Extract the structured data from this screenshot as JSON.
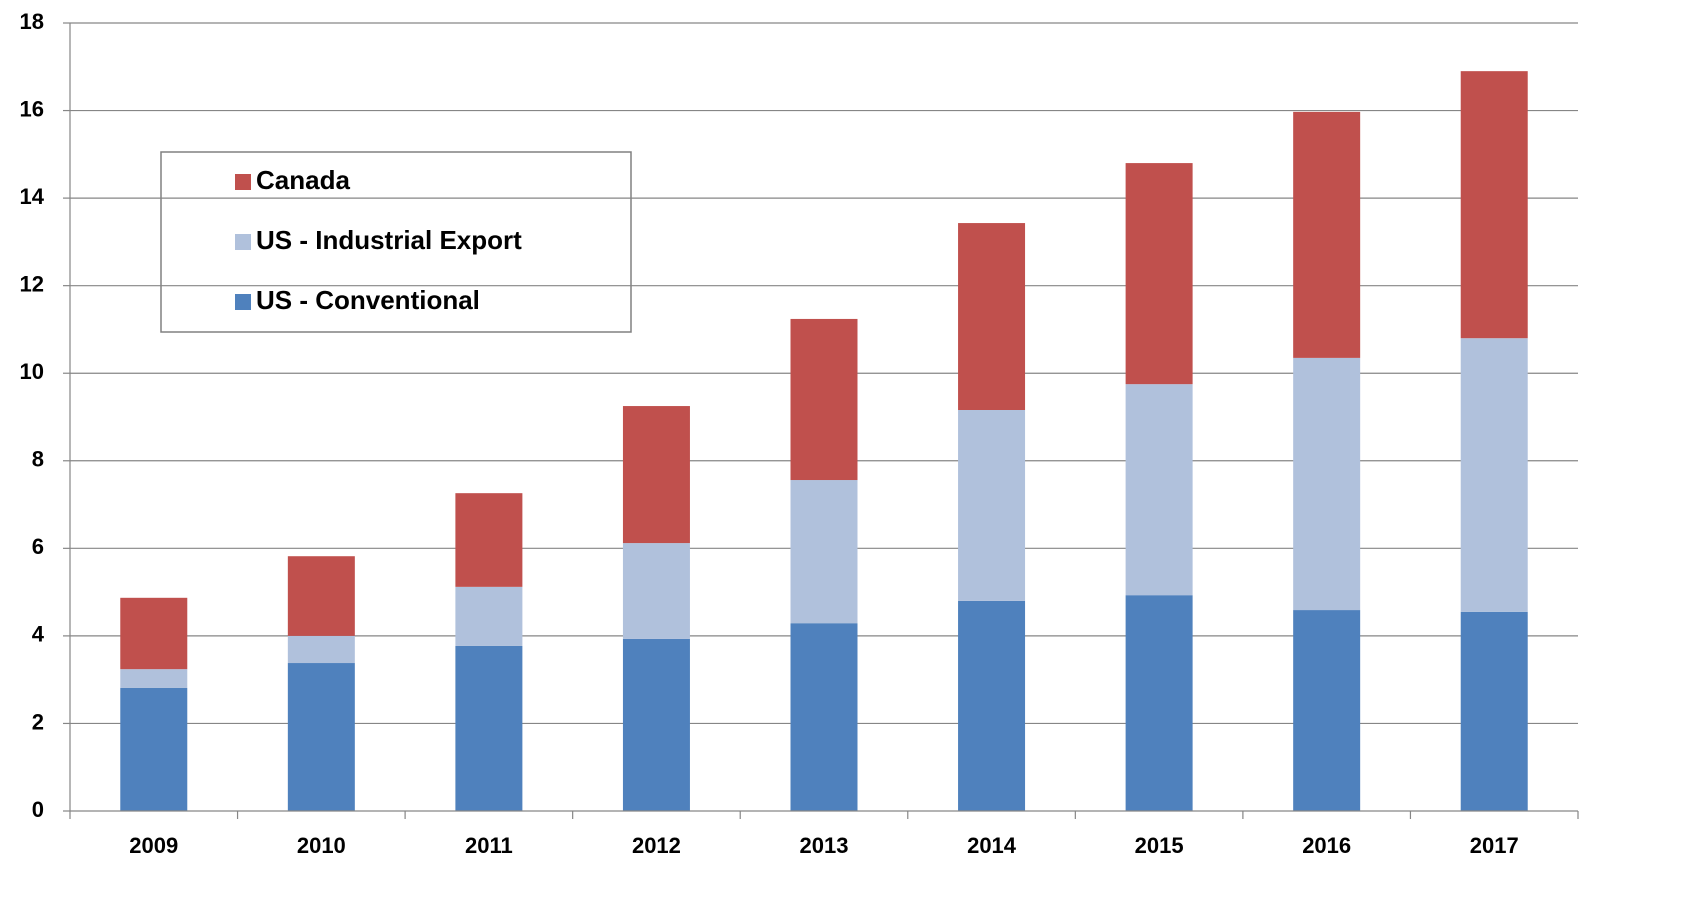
{
  "chart_data": {
    "type": "stacked_bar",
    "categories": [
      "2009",
      "2010",
      "2011",
      "2012",
      "2013",
      "2014",
      "2015",
      "2016",
      "2017"
    ],
    "series": [
      {
        "name": "US - Conventional",
        "color": "#4f81bd",
        "values": [
          2.81,
          3.38,
          3.77,
          3.93,
          4.29,
          4.8,
          4.93,
          4.59,
          4.55
        ]
      },
      {
        "name": "US - Industrial Export",
        "color": "#b0c1dc",
        "values": [
          0.43,
          0.62,
          1.35,
          2.19,
          3.27,
          4.36,
          4.82,
          5.76,
          6.25
        ]
      },
      {
        "name": "Canada",
        "color": "#c0504d",
        "values": [
          1.63,
          1.82,
          2.14,
          3.13,
          3.68,
          4.27,
          5.05,
          5.62,
          6.1
        ]
      }
    ],
    "ylim": [
      0,
      18
    ],
    "yticks": [
      0,
      2,
      4,
      6,
      8,
      10,
      12,
      14,
      16,
      18
    ],
    "grid": true
  }
}
